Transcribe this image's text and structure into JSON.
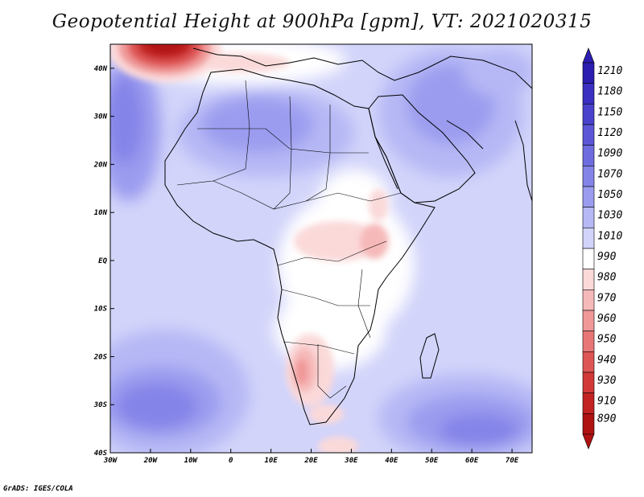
{
  "title": "Geopotential Height at 900hPa [gpm], VT: 2021020315",
  "credit": "GrADS: IGES/COLA",
  "map": {
    "lon_range": [
      -30,
      75
    ],
    "lat_range": [
      -40,
      45
    ],
    "x_ticks": [
      "30W",
      "20W",
      "10W",
      "0",
      "10E",
      "20E",
      "30E",
      "40E",
      "50E",
      "60E",
      "70E"
    ],
    "y_ticks": [
      "40N",
      "30N",
      "20N",
      "10N",
      "EQ",
      "10S",
      "20S",
      "30S",
      "40S"
    ],
    "features": {
      "high_pressure_south_atlantic": 1070,
      "high_pressure_indian_ocean": 1070,
      "low_north_atlantic": 890,
      "low_kalahari": 960
    }
  },
  "colorbar": {
    "labels": [
      "1210",
      "1180",
      "1150",
      "1120",
      "1090",
      "1070",
      "1050",
      "1030",
      "1010",
      "990",
      "980",
      "970",
      "960",
      "950",
      "940",
      "930",
      "910",
      "890"
    ],
    "colors": [
      "#2c1eb0",
      "#3a2fc0",
      "#4a42cc",
      "#5c56d6",
      "#6e6cdf",
      "#8483e8",
      "#9b9cef",
      "#b6b8f5",
      "#d2d4fa",
      "#ffffff",
      "#fbd9d9",
      "#f6b9b9",
      "#f09898",
      "#e87676",
      "#de5555",
      "#d23838",
      "#c22222",
      "#b01212"
    ]
  }
}
